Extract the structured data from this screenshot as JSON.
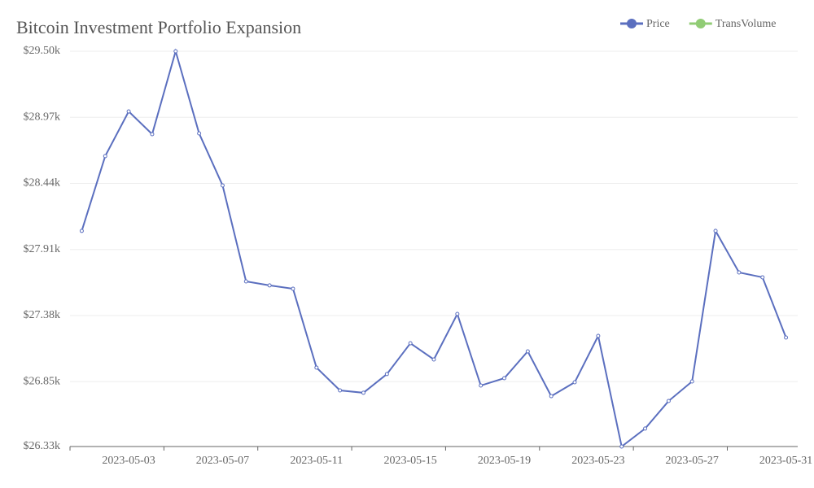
{
  "chart_data": {
    "type": "line",
    "title": "Bitcoin Investment Portfolio Expansion",
    "x": [
      "2023-05-01",
      "2023-05-02",
      "2023-05-03",
      "2023-05-04",
      "2023-05-05",
      "2023-05-06",
      "2023-05-07",
      "2023-05-08",
      "2023-05-09",
      "2023-05-10",
      "2023-05-11",
      "2023-05-12",
      "2023-05-13",
      "2023-05-14",
      "2023-05-15",
      "2023-05-16",
      "2023-05-17",
      "2023-05-18",
      "2023-05-19",
      "2023-05-20",
      "2023-05-21",
      "2023-05-22",
      "2023-05-23",
      "2023-05-24",
      "2023-05-25",
      "2023-05-26",
      "2023-05-27",
      "2023-05-28",
      "2023-05-29",
      "2023-05-30",
      "2023-05-31"
    ],
    "series": [
      {
        "name": "Price",
        "color": "#5b6fbf",
        "values": [
          28059,
          28659,
          29017,
          28835,
          29500,
          28841,
          28424,
          27654,
          27622,
          27595,
          26963,
          26780,
          26761,
          26911,
          27158,
          27028,
          27393,
          26819,
          26878,
          27093,
          26734,
          26845,
          27217,
          26330,
          26474,
          26695,
          26852,
          28059,
          27726,
          27687,
          27204
        ]
      },
      {
        "name": "TransVolume",
        "color": "#91cc75",
        "values": [
          null,
          null,
          null,
          null,
          null,
          null,
          null,
          null,
          null,
          null,
          null,
          null,
          null,
          null,
          null,
          null,
          null,
          null,
          null,
          null,
          null,
          null,
          null,
          null,
          null,
          null,
          null,
          null,
          null,
          null,
          null
        ]
      }
    ],
    "ylim": [
      26330,
      29500
    ],
    "yticks": [
      {
        "value": 26330,
        "label": "$26.33k"
      },
      {
        "value": 26850,
        "label": "$26.85k"
      },
      {
        "value": 27380,
        "label": "$27.38k"
      },
      {
        "value": 27910,
        "label": "$27.91k"
      },
      {
        "value": 28440,
        "label": "$28.44k"
      },
      {
        "value": 28970,
        "label": "$28.97k"
      },
      {
        "value": 29500,
        "label": "$29.50k"
      }
    ],
    "grid": true
  }
}
